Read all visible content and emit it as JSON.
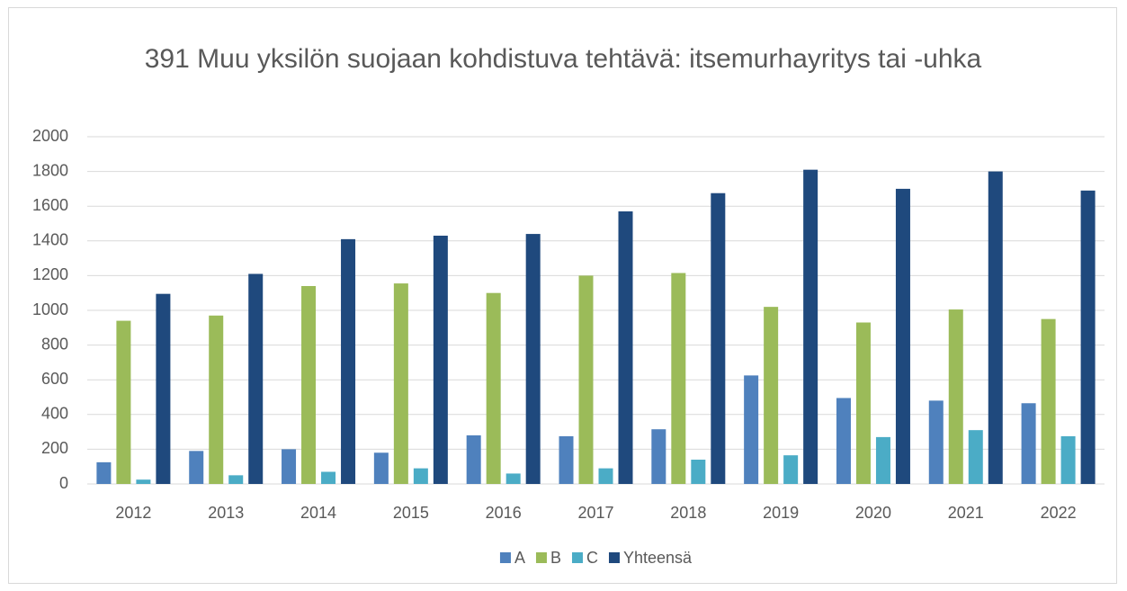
{
  "chart_data": {
    "type": "bar",
    "title": "391 Muu yksilön suojaan kohdistuva tehtävä: itsemurhayritys tai -uhka",
    "categories": [
      "2012",
      "2013",
      "2014",
      "2015",
      "2016",
      "2017",
      "2018",
      "2019",
      "2020",
      "2021",
      "2022"
    ],
    "series": [
      {
        "name": "A",
        "color": "#4f81bd",
        "values": [
          125,
          190,
          200,
          180,
          280,
          275,
          315,
          625,
          495,
          480,
          465
        ]
      },
      {
        "name": "B",
        "color": "#9bbb59",
        "values": [
          940,
          970,
          1140,
          1155,
          1100,
          1200,
          1215,
          1020,
          930,
          1005,
          950
        ]
      },
      {
        "name": "C",
        "color": "#4bacc6",
        "values": [
          25,
          50,
          70,
          90,
          60,
          90,
          140,
          165,
          270,
          310,
          275
        ]
      },
      {
        "name": "Yhteensä",
        "color": "#1f497d",
        "values": [
          1095,
          1210,
          1410,
          1430,
          1440,
          1570,
          1675,
          1810,
          1700,
          1800,
          1690
        ]
      }
    ],
    "ylim": [
      0,
      2000
    ],
    "yticks": [
      0,
      200,
      400,
      600,
      800,
      1000,
      1200,
      1400,
      1600,
      1800,
      2000
    ],
    "grid": true,
    "legend": "bottom"
  }
}
